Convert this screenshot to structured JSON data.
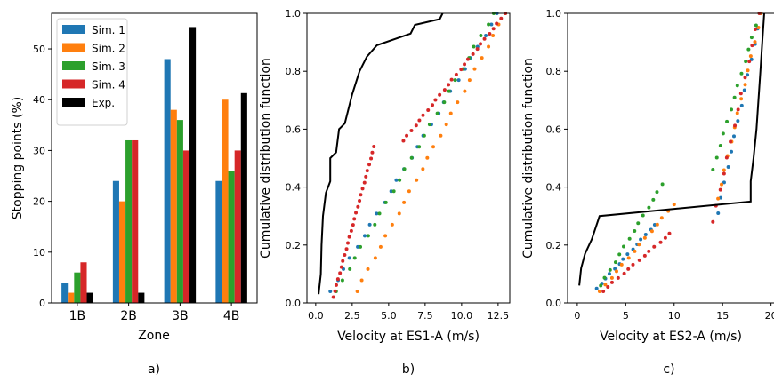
{
  "colors": {
    "sim1": "#1f77b4",
    "sim2": "#ff7f0e",
    "sim3": "#2ca02c",
    "sim4": "#d62728",
    "exp": "#000000"
  },
  "chart_data": [
    {
      "type": "bar",
      "caption": "a)",
      "xlabel": "Zone",
      "ylabel": "Stopping points (%)",
      "categories": [
        "1B",
        "2B",
        "3B",
        "4B"
      ],
      "ylim": [
        0,
        57
      ],
      "yticks": [
        0,
        10,
        20,
        30,
        40,
        50
      ],
      "legend_position": "top-left",
      "series": [
        {
          "name": "Sim. 1",
          "color_key": "sim1",
          "values": [
            4,
            24,
            48,
            24
          ]
        },
        {
          "name": "Sim. 2",
          "color_key": "sim2",
          "values": [
            2,
            20,
            38,
            40
          ]
        },
        {
          "name": "Sim. 3",
          "color_key": "sim3",
          "values": [
            6,
            32,
            36,
            26
          ]
        },
        {
          "name": "Sim. 4",
          "color_key": "sim4",
          "values": [
            8,
            32,
            30,
            30
          ]
        },
        {
          "name": "Exp.",
          "color_key": "exp",
          "values": [
            2,
            2,
            54.3,
            41.3
          ]
        }
      ]
    },
    {
      "type": "scatter",
      "caption": "b)",
      "xlabel": "Velocity at ES1-A (m/s)",
      "ylabel": "Cumulative distribution function",
      "xlim": [
        -0.6,
        13.3
      ],
      "ylim": [
        0,
        1
      ],
      "xticks": [
        "0.0",
        "2.5",
        "5.0",
        "7.5",
        "10.0",
        "12.5"
      ],
      "yticks": [
        "0.0",
        "0.2",
        "0.4",
        "0.6",
        "0.8",
        "1.0"
      ],
      "exp_curve": [
        [
          0.2,
          0.03
        ],
        [
          0.35,
          0.1
        ],
        [
          0.4,
          0.2
        ],
        [
          0.5,
          0.3
        ],
        [
          0.7,
          0.38
        ],
        [
          1.0,
          0.42
        ],
        [
          1.0,
          0.5
        ],
        [
          1.4,
          0.52
        ],
        [
          1.6,
          0.6
        ],
        [
          2.0,
          0.62
        ],
        [
          2.5,
          0.72
        ],
        [
          3.0,
          0.8
        ],
        [
          3.5,
          0.85
        ],
        [
          4.2,
          0.89
        ],
        [
          6.5,
          0.93
        ],
        [
          6.8,
          0.96
        ],
        [
          8.5,
          0.98
        ],
        [
          8.7,
          1.0
        ]
      ],
      "series": [
        {
          "name": "Sim. 1",
          "color_key": "sim1",
          "x_start": 1.0,
          "x_end": 12.5,
          "y_start": 0.04,
          "y_end": 1.0
        },
        {
          "name": "Sim. 2",
          "color_key": "sim2",
          "x_start": 2.8,
          "x_end": 13.0,
          "y_start": 0.04,
          "y_end": 1.0
        },
        {
          "name": "Sim. 3",
          "color_key": "sim3",
          "x_start": 1.4,
          "x_end": 12.2,
          "y_start": 0.04,
          "y_end": 1.0
        },
        {
          "name": "Sim. 4 (lower)",
          "color_key": "sim4",
          "x_start": 1.2,
          "x_end": 4.0,
          "y_start": 0.02,
          "y_end": 0.54
        },
        {
          "name": "Sim. 4 (upper)",
          "color_key": "sim4",
          "x_start": 6.0,
          "x_end": 13.0,
          "y_start": 0.56,
          "y_end": 1.0
        }
      ]
    },
    {
      "type": "scatter",
      "caption": "c)",
      "xlabel": "Velocity at ES2-A (m/s)",
      "ylabel": "Cumulative distribution function",
      "xlim": [
        -1.0,
        20.4
      ],
      "ylim": [
        0,
        1
      ],
      "xticks": [
        "0",
        "5",
        "10",
        "15",
        "20"
      ],
      "yticks": [
        "0.0",
        "0.2",
        "0.4",
        "0.6",
        "0.8",
        "1.0"
      ],
      "exp_curve": [
        [
          0.2,
          0.06
        ],
        [
          0.4,
          0.12
        ],
        [
          0.8,
          0.17
        ],
        [
          1.5,
          0.22
        ],
        [
          2.2,
          0.29
        ],
        [
          2.3,
          0.3
        ],
        [
          17.9,
          0.35
        ],
        [
          17.9,
          0.42
        ],
        [
          18.2,
          0.5
        ],
        [
          18.5,
          0.6
        ],
        [
          18.7,
          0.7
        ],
        [
          18.9,
          0.8
        ],
        [
          19.1,
          0.9
        ],
        [
          19.3,
          1.0
        ]
      ],
      "series": [
        {
          "name": "Sim. 1 (low)",
          "color_key": "sim1",
          "x_start": 2.0,
          "x_end": 8.0,
          "y_start": 0.05,
          "y_end": 0.27
        },
        {
          "name": "Sim. 1 (high)",
          "color_key": "sim1",
          "x_start": 14.5,
          "x_end": 19.0,
          "y_start": 0.31,
          "y_end": 1.0
        },
        {
          "name": "Sim. 2 (low)",
          "color_key": "sim2",
          "x_start": 2.3,
          "x_end": 10.0,
          "y_start": 0.04,
          "y_end": 0.34
        },
        {
          "name": "Sim. 2 (high)",
          "color_key": "sim2",
          "x_start": 14.5,
          "x_end": 19.0,
          "y_start": 0.36,
          "y_end": 1.0
        },
        {
          "name": "Sim. 3 (low)",
          "color_key": "sim3",
          "x_start": 2.4,
          "x_end": 8.8,
          "y_start": 0.06,
          "y_end": 0.41
        },
        {
          "name": "Sim. 3 (high)",
          "color_key": "sim3",
          "x_start": 14.0,
          "x_end": 18.8,
          "y_start": 0.46,
          "y_end": 1.0
        },
        {
          "name": "Sim. 4 (low)",
          "color_key": "sim4",
          "x_start": 2.6,
          "x_end": 9.6,
          "y_start": 0.04,
          "y_end": 0.24
        },
        {
          "name": "Sim. 4 (high)",
          "color_key": "sim4",
          "x_start": 14.0,
          "x_end": 18.8,
          "y_start": 0.28,
          "y_end": 1.0
        }
      ]
    }
  ]
}
